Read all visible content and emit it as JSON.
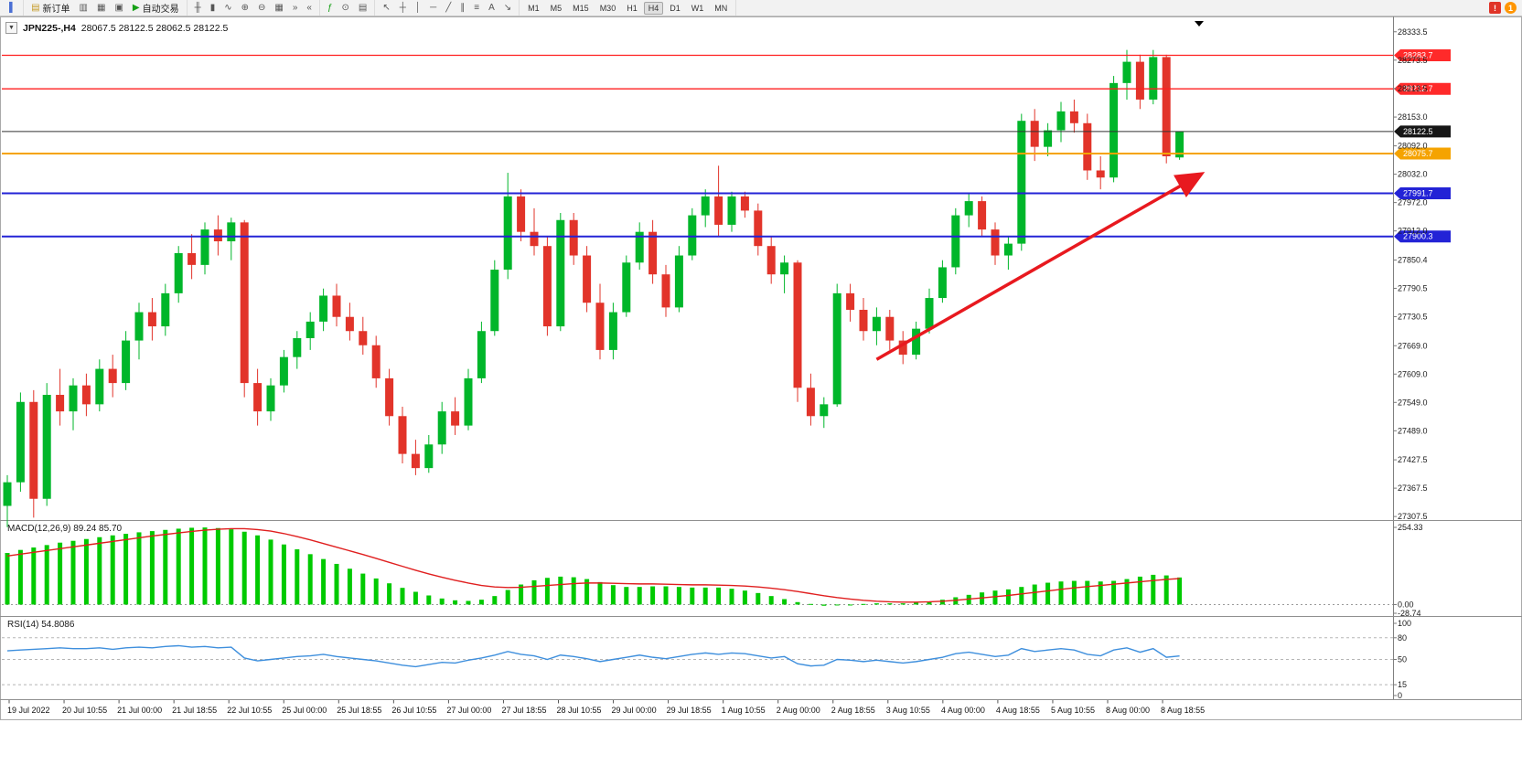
{
  "toolbar": {
    "groups": [
      {
        "items": [
          {
            "name": "panels-toggle-icon",
            "glyph": "▌",
            "color": "#4a6fd4"
          }
        ]
      },
      {
        "items": [
          {
            "name": "new-order-button",
            "glyph": "▤",
            "color": "#c59a27",
            "label": "新订单"
          },
          {
            "name": "chart-window-icon",
            "glyph": "▥"
          },
          {
            "name": "profiles-icon",
            "glyph": "▦"
          },
          {
            "name": "data-window-icon",
            "glyph": "▣"
          },
          {
            "name": "autotrading-button",
            "glyph": "▶",
            "color": "#16a016",
            "label": "自动交易"
          }
        ]
      },
      {
        "items": [
          {
            "name": "bar-chart-icon",
            "glyph": "╫"
          },
          {
            "name": "candlestick-chart-icon",
            "glyph": "▮"
          },
          {
            "name": "line-chart-icon",
            "glyph": "∿"
          },
          {
            "name": "zoom-in-icon",
            "glyph": "⊕"
          },
          {
            "name": "zoom-out-icon",
            "glyph": "⊖"
          },
          {
            "name": "tile-windows-icon",
            "glyph": "▦"
          },
          {
            "name": "auto-scroll-icon",
            "glyph": "»"
          },
          {
            "name": "chart-shift-icon",
            "glyph": "«"
          }
        ]
      },
      {
        "items": [
          {
            "name": "indicators-icon",
            "glyph": "ƒ",
            "color": "#16a016"
          },
          {
            "name": "periods-icon",
            "glyph": "⊙"
          },
          {
            "name": "templates-icon",
            "glyph": "▤"
          }
        ]
      },
      {
        "items": [
          {
            "name": "cursor-icon",
            "glyph": "↖"
          },
          {
            "name": "crosshair-icon",
            "glyph": "┼"
          },
          {
            "name": "vertical-line-icon",
            "glyph": "│"
          },
          {
            "name": "horizontal-line-icon",
            "glyph": "─"
          },
          {
            "name": "trendline-icon",
            "glyph": "╱"
          },
          {
            "name": "equidistant-channel-icon",
            "glyph": "∥"
          },
          {
            "name": "fibonacci-icon",
            "glyph": "≡"
          },
          {
            "name": "text-tool-icon",
            "glyph": "A"
          },
          {
            "name": "arrow-tool-icon",
            "glyph": "↘"
          }
        ]
      }
    ],
    "timeframes": {
      "options": [
        "M1",
        "M5",
        "M15",
        "M30",
        "H1",
        "H4",
        "D1",
        "W1",
        "MN"
      ],
      "active": "H4"
    },
    "right": {
      "alert_icon": "!",
      "notification_count": "1"
    }
  },
  "chart": {
    "symbol_title": "JPN225-,H4",
    "ohlc": "28067.5 28122.5 28062.5 28122.5",
    "dropdown_glyph": "▼",
    "price_axis": [
      "28333.5",
      "28273.5",
      "28213.5",
      "28153.0",
      "28092.0",
      "28032.0",
      "27972.0",
      "27912.0",
      "27850.4",
      "27790.5",
      "27730.5",
      "27669.0",
      "27609.0",
      "27549.0",
      "27489.0",
      "27427.5",
      "27367.5",
      "27307.5"
    ],
    "time_axis": [
      "19 Jul 2022",
      "20 Jul 10:55",
      "21 Jul 00:00",
      "21 Jul 18:55",
      "22 Jul 10:55",
      "25 Jul 00:00",
      "25 Jul 18:55",
      "26 Jul 10:55",
      "27 Jul 00:00",
      "27 Jul 18:55",
      "28 Jul 10:55",
      "29 Jul 00:00",
      "29 Jul 18:55",
      "1 Aug 10:55",
      "2 Aug 00:00",
      "2 Aug 18:55",
      "3 Aug 10:55",
      "4 Aug 00:00",
      "4 Aug 18:55",
      "5 Aug 10:55",
      "8 Aug 00:00",
      "8 Aug 18:55"
    ],
    "lines": [
      {
        "name": "horizontal-line-resistance-1",
        "price": 28283.7,
        "color": "#ff1f1f",
        "width": 1.3,
        "badge": "28283.7",
        "badge_bg": "#ff2a2a"
      },
      {
        "name": "horizontal-line-resistance-2",
        "price": 28212.7,
        "color": "#ff1f1f",
        "width": 1.3,
        "badge": "28212.7",
        "badge_bg": "#ff2a2a"
      },
      {
        "name": "bid-price-line",
        "price": 28122.5,
        "color": "#333333",
        "width": 1,
        "badge": "28122.5",
        "badge_bg": "#161616"
      },
      {
        "name": "horizontal-line-pivot-orange",
        "price": 28075.7,
        "color": "#f5a300",
        "width": 2,
        "badge": "28075.7",
        "badge_bg": "#f5a300"
      },
      {
        "name": "horizontal-line-support-1",
        "price": 27991.7,
        "color": "#2323d6",
        "width": 2,
        "badge": "27991.7",
        "badge_bg": "#2323d6"
      },
      {
        "name": "horizontal-line-support-2",
        "price": 27900.3,
        "color": "#2323d6",
        "width": 2,
        "badge": "27900.3",
        "badge_bg": "#2323d6"
      }
    ],
    "trend_arrow": {
      "from_index": 66,
      "from_price": 27640,
      "to_index": 90.5,
      "to_price": 28030,
      "color": "#e8191f"
    }
  },
  "macd": {
    "label": "MACD(12,26,9) 89.24 85.70",
    "axis": [
      "254.33",
      "0.00",
      "-28.74"
    ],
    "hist_color": "#00ca00",
    "signal_color": "#e01f1f"
  },
  "rsi": {
    "label": "RSI(14) 54.8086",
    "axis": [
      "100",
      "80",
      "50",
      "15",
      "0"
    ],
    "levels": [
      80,
      50,
      15
    ],
    "color": "#3e8fdd"
  },
  "chart_data": {
    "type": "candlestick",
    "symbol": "JPN225-",
    "timeframe": "H4",
    "title": "JPN225-,H4",
    "current_ohlc": [
      28067.5,
      28122.5,
      28062.5,
      28122.5
    ],
    "price_range": [
      27300,
      28364
    ],
    "bull_color": "#00b62a",
    "bear_color": "#e2342a",
    "candles": [
      [
        27330,
        27395,
        27285,
        27380
      ],
      [
        27380,
        27570,
        27360,
        27550
      ],
      [
        27550,
        27575,
        27305,
        27345
      ],
      [
        27345,
        27590,
        27330,
        27565
      ],
      [
        27565,
        27620,
        27500,
        27530
      ],
      [
        27530,
        27600,
        27490,
        27585
      ],
      [
        27585,
        27610,
        27520,
        27545
      ],
      [
        27545,
        27640,
        27530,
        27620
      ],
      [
        27620,
        27650,
        27560,
        27590
      ],
      [
        27590,
        27700,
        27575,
        27680
      ],
      [
        27680,
        27760,
        27640,
        27740
      ],
      [
        27740,
        27770,
        27680,
        27710
      ],
      [
        27710,
        27800,
        27690,
        27780
      ],
      [
        27780,
        27880,
        27760,
        27865
      ],
      [
        27865,
        27905,
        27810,
        27840
      ],
      [
        27840,
        27930,
        27820,
        27915
      ],
      [
        27915,
        27945,
        27860,
        27890
      ],
      [
        27890,
        27940,
        27850,
        27930
      ],
      [
        27930,
        27935,
        27560,
        27590
      ],
      [
        27590,
        27620,
        27500,
        27530
      ],
      [
        27530,
        27600,
        27510,
        27585
      ],
      [
        27585,
        27660,
        27570,
        27645
      ],
      [
        27645,
        27700,
        27620,
        27685
      ],
      [
        27685,
        27740,
        27660,
        27720
      ],
      [
        27720,
        27790,
        27700,
        27775
      ],
      [
        27775,
        27800,
        27710,
        27730
      ],
      [
        27730,
        27760,
        27680,
        27700
      ],
      [
        27700,
        27730,
        27650,
        27670
      ],
      [
        27670,
        27690,
        27580,
        27600
      ],
      [
        27600,
        27620,
        27500,
        27520
      ],
      [
        27520,
        27540,
        27420,
        27440
      ],
      [
        27440,
        27470,
        27395,
        27410
      ],
      [
        27410,
        27480,
        27400,
        27460
      ],
      [
        27460,
        27550,
        27440,
        27530
      ],
      [
        27530,
        27560,
        27480,
        27500
      ],
      [
        27500,
        27620,
        27490,
        27600
      ],
      [
        27600,
        27720,
        27590,
        27700
      ],
      [
        27700,
        27850,
        27690,
        27830
      ],
      [
        27830,
        28035,
        27810,
        27985
      ],
      [
        27985,
        28000,
        27890,
        27910
      ],
      [
        27910,
        27960,
        27860,
        27880
      ],
      [
        27880,
        27900,
        27690,
        27710
      ],
      [
        27710,
        27950,
        27700,
        27935
      ],
      [
        27935,
        27950,
        27840,
        27860
      ],
      [
        27860,
        27880,
        27740,
        27760
      ],
      [
        27760,
        27800,
        27640,
        27660
      ],
      [
        27660,
        27760,
        27640,
        27740
      ],
      [
        27740,
        27860,
        27730,
        27845
      ],
      [
        27845,
        27930,
        27830,
        27910
      ],
      [
        27910,
        27935,
        27800,
        27820
      ],
      [
        27820,
        27840,
        27730,
        27750
      ],
      [
        27750,
        27880,
        27740,
        27860
      ],
      [
        27860,
        27960,
        27850,
        27945
      ],
      [
        27945,
        28000,
        27920,
        27985
      ],
      [
        27985,
        28050,
        27900,
        27925
      ],
      [
        27925,
        27995,
        27910,
        27985
      ],
      [
        27985,
        27995,
        27940,
        27955
      ],
      [
        27955,
        27970,
        27860,
        27880
      ],
      [
        27880,
        27900,
        27800,
        27820
      ],
      [
        27820,
        27860,
        27780,
        27845
      ],
      [
        27845,
        27850,
        27550,
        27580
      ],
      [
        27580,
        27610,
        27500,
        27520
      ],
      [
        27520,
        27560,
        27495,
        27545
      ],
      [
        27545,
        27800,
        27540,
        27780
      ],
      [
        27780,
        27800,
        27720,
        27745
      ],
      [
        27745,
        27770,
        27680,
        27700
      ],
      [
        27700,
        27750,
        27670,
        27730
      ],
      [
        27730,
        27745,
        27660,
        27680
      ],
      [
        27680,
        27700,
        27630,
        27650
      ],
      [
        27650,
        27720,
        27640,
        27705
      ],
      [
        27705,
        27790,
        27695,
        27770
      ],
      [
        27770,
        27850,
        27760,
        27835
      ],
      [
        27835,
        27960,
        27820,
        27945
      ],
      [
        27945,
        27990,
        27920,
        27975
      ],
      [
        27975,
        27985,
        27900,
        27915
      ],
      [
        27915,
        27930,
        27840,
        27860
      ],
      [
        27860,
        27900,
        27830,
        27885
      ],
      [
        27885,
        28160,
        27870,
        28145
      ],
      [
        28145,
        28170,
        28060,
        28090
      ],
      [
        28090,
        28140,
        28070,
        28125
      ],
      [
        28125,
        28185,
        28100,
        28165
      ],
      [
        28165,
        28190,
        28120,
        28140
      ],
      [
        28140,
        28160,
        28020,
        28040
      ],
      [
        28040,
        28070,
        28000,
        28025
      ],
      [
        28025,
        28240,
        28015,
        28225
      ],
      [
        28225,
        28295,
        28190,
        28270
      ],
      [
        28270,
        28285,
        28170,
        28190
      ],
      [
        28190,
        28295,
        28180,
        28280
      ],
      [
        28280,
        28285,
        28055,
        28070
      ],
      [
        28067.5,
        28122.5,
        28062.5,
        28122.5
      ]
    ],
    "indicators": {
      "macd": {
        "histogram": [
          170,
          180,
          188,
          196,
          204,
          210,
          216,
          222,
          228,
          233,
          238,
          242,
          246,
          250,
          253,
          254,
          252,
          248,
          240,
          228,
          214,
          198,
          182,
          166,
          150,
          134,
          118,
          102,
          86,
          70,
          55,
          42,
          30,
          20,
          14,
          12,
          16,
          28,
          48,
          66,
          80,
          88,
          92,
          90,
          84,
          74,
          64,
          58,
          58,
          60,
          60,
          58,
          56,
          56,
          56,
          52,
          46,
          38,
          28,
          18,
          8,
          2,
          -4,
          -2,
          0,
          2,
          4,
          4,
          4,
          6,
          10,
          16,
          24,
          32,
          40,
          46,
          50,
          58,
          66,
          72,
          76,
          78,
          78,
          76,
          78,
          84,
          92,
          98,
          96,
          89.24
        ],
        "signal": [
          160,
          166,
          172,
          178,
          184,
          190,
          196,
          202,
          208,
          214,
          220,
          226,
          231,
          236,
          241,
          245,
          248,
          250,
          250,
          247,
          242,
          234,
          224,
          213,
          201,
          189,
          177,
          165,
          152,
          139,
          126,
          113,
          101,
          90,
          80,
          71,
          63,
          58,
          56,
          57,
          60,
          63,
          66,
          69,
          71,
          71,
          70,
          69,
          68,
          68,
          67,
          66,
          65,
          65,
          64,
          63,
          61,
          58,
          54,
          49,
          43,
          36,
          29,
          23,
          18,
          14,
          11,
          9,
          8,
          8,
          9,
          11,
          14,
          18,
          22,
          26,
          30,
          35,
          40,
          45,
          50,
          55,
          59,
          63,
          67,
          71,
          75,
          79,
          83,
          85.7
        ]
      },
      "rsi": {
        "values": [
          62,
          63,
          64,
          65,
          66,
          65,
          65,
          66,
          64,
          66,
          67,
          66,
          68,
          69,
          67,
          68,
          66,
          67,
          52,
          48,
          50,
          52,
          54,
          55,
          57,
          54,
          52,
          50,
          48,
          45,
          42,
          40,
          43,
          46,
          45,
          49,
          52,
          56,
          61,
          57,
          55,
          50,
          56,
          54,
          51,
          47,
          50,
          53,
          56,
          53,
          51,
          54,
          57,
          59,
          57,
          59,
          58,
          55,
          52,
          54,
          44,
          41,
          42,
          50,
          49,
          47,
          49,
          47,
          45,
          47,
          50,
          53,
          58,
          60,
          57,
          54,
          56,
          65,
          61,
          63,
          65,
          63,
          57,
          55,
          63,
          66,
          60,
          65,
          53,
          54.8
        ]
      }
    }
  }
}
